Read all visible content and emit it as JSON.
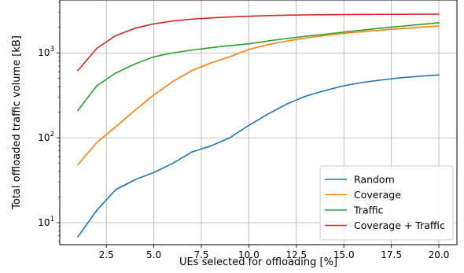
{
  "chart_data": {
    "type": "line",
    "title": "",
    "xlabel": "UEs selected for offloading [%]",
    "ylabel": "Total offloaded traffic volume [kB]",
    "xlim": [
      0.05,
      20.95
    ],
    "ylim": [
      5.5,
      4200
    ],
    "yscale": "log",
    "grid": true,
    "legend_position": "lower-right",
    "x_ticks": [
      2.5,
      5.0,
      7.5,
      10.0,
      12.5,
      15.0,
      17.5,
      20.0
    ],
    "x_tick_labels": [
      "2.5",
      "5.0",
      "7.5",
      "10.0",
      "12.5",
      "15.0",
      "17.5",
      "20.0"
    ],
    "y_ticks": [
      10,
      100,
      1000
    ],
    "y_tick_base": "10",
    "y_tick_exponents": [
      "1",
      "2",
      "3"
    ],
    "x": [
      1,
      2,
      3,
      4,
      5,
      6,
      7,
      8,
      9,
      10,
      11,
      12,
      13,
      14,
      15,
      16,
      17,
      18,
      19,
      20
    ],
    "series": [
      {
        "name": "Random",
        "color": "#1f77b4",
        "values": [
          6.8,
          14,
          24.5,
          32,
          39,
          50,
          68,
          80,
          100,
          140,
          190,
          250,
          310,
          360,
          410,
          450,
          480,
          510,
          530,
          550
        ]
      },
      {
        "name": "Coverage",
        "color": "#ff7f0e",
        "values": [
          48,
          88,
          135,
          210,
          320,
          460,
          620,
          760,
          900,
          1100,
          1250,
          1380,
          1500,
          1600,
          1700,
          1780,
          1860,
          1930,
          2010,
          2080
        ]
      },
      {
        "name": "Traffic",
        "color": "#2ca02c",
        "values": [
          210,
          410,
          580,
          740,
          900,
          1000,
          1080,
          1150,
          1220,
          1280,
          1380,
          1480,
          1570,
          1660,
          1760,
          1860,
          1960,
          2060,
          2160,
          2260
        ]
      },
      {
        "name": "Coverage + Traffic",
        "color": "#d62728",
        "values": [
          620,
          1130,
          1600,
          1950,
          2200,
          2380,
          2500,
          2580,
          2650,
          2700,
          2750,
          2780,
          2800,
          2820,
          2830,
          2840,
          2845,
          2850,
          2855,
          2860
        ]
      }
    ]
  }
}
